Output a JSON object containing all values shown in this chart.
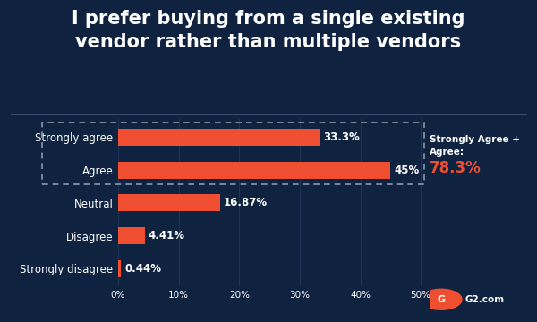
{
  "title": "I prefer buying from a single existing\nvendor rather than multiple vendors",
  "categories": [
    "Strongly agree",
    "Agree",
    "Neutral",
    "Disagree",
    "Strongly disagree"
  ],
  "values": [
    33.3,
    45.0,
    16.87,
    4.41,
    0.44
  ],
  "labels": [
    "33.3%",
    "45%",
    "16.87%",
    "4.41%",
    "0.44%"
  ],
  "bar_color": "#F04E30",
  "bg_color": "#0f2340",
  "text_color": "#ffffff",
  "highlight_line1": "Strongly Agree +",
  "highlight_line2": "Agree:",
  "highlight_value": "78.3%",
  "highlight_color": "#F04E30",
  "xlim_max": 55,
  "xticks": [
    0,
    10,
    20,
    30,
    40,
    50
  ],
  "xtick_labels": [
    "0%",
    "10%",
    "20%",
    "30%",
    "40%",
    "50%"
  ],
  "title_fontsize": 15,
  "label_fontsize": 8.5,
  "tick_fontsize": 7.5,
  "g2_logo_color": "#F04E30",
  "separator_color": "#3a5070",
  "grid_color": "#1e3558",
  "dash_box_color": "#8899aa"
}
